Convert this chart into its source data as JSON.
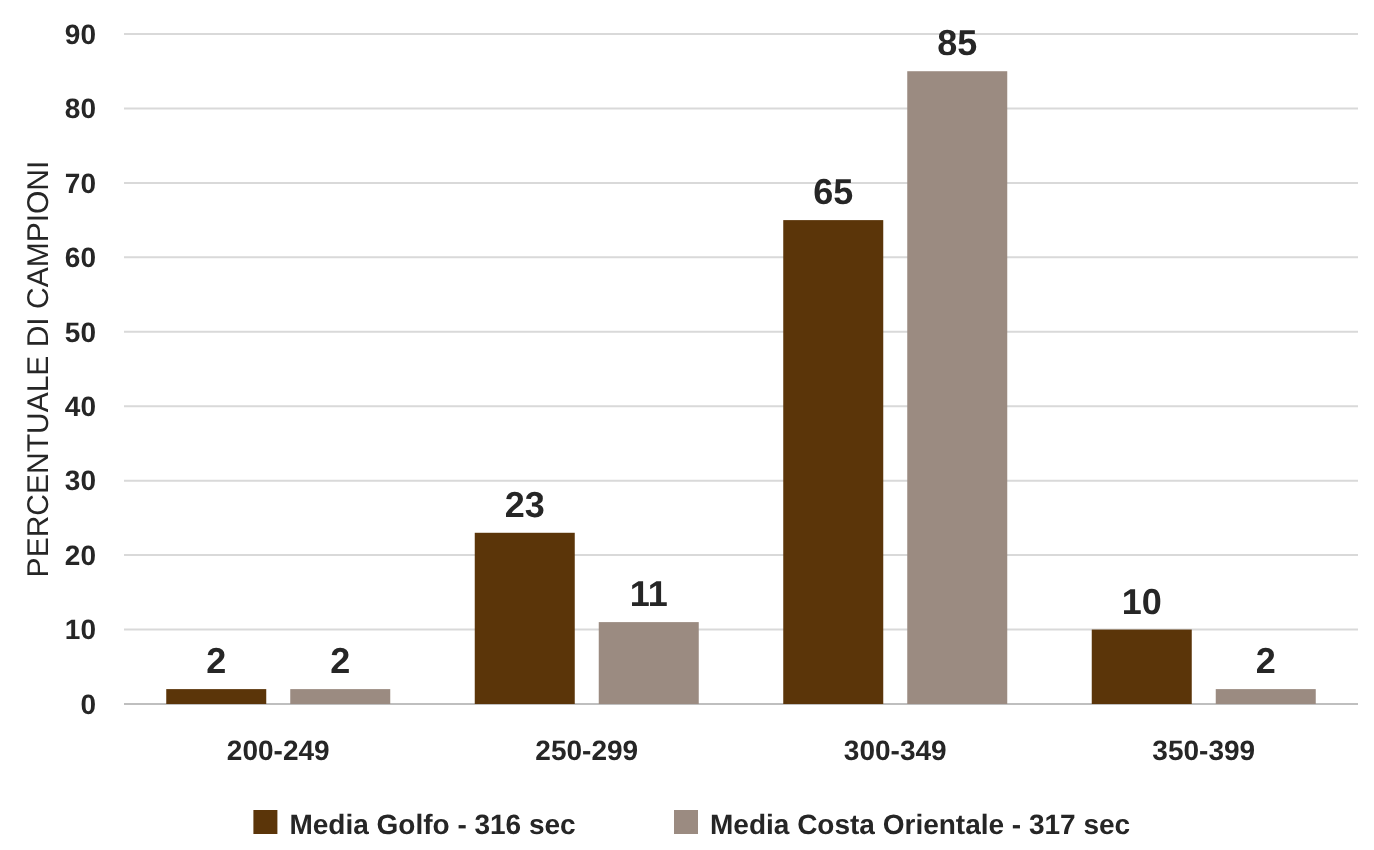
{
  "chart_data": {
    "type": "bar",
    "ylabel": "PERCENTUALE DI CAMPIONI",
    "categories": [
      "200-249",
      "250-299",
      "300-349",
      "350-399"
    ],
    "series": [
      {
        "name": "Media Golfo - 316 sec",
        "color": "#5b3509",
        "values": [
          2,
          23,
          65,
          10
        ]
      },
      {
        "name": "Media Costa Orientale - 317 sec",
        "color": "#9b8b81",
        "values": [
          2,
          11,
          85,
          2
        ]
      }
    ],
    "ylim": [
      0,
      90
    ],
    "yticks": [
      0,
      10,
      20,
      30,
      40,
      50,
      60,
      70,
      80,
      90
    ],
    "grid": "y",
    "legend": "bottom",
    "data_labels": true
  }
}
